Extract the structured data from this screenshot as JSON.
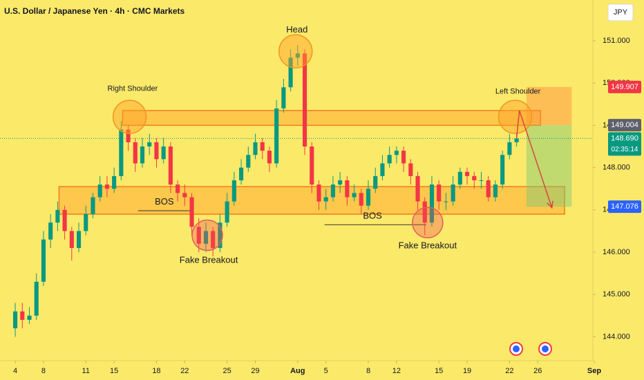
{
  "chart_data": {
    "type": "candlestick",
    "title": "U.S. Dollar / Japanese Yen · 4h · CMC Markets",
    "currency": "JPY",
    "up_color": "#089981",
    "down_color": "#f23645",
    "x": [
      0,
      0.5,
      1,
      1.5,
      2,
      2.5,
      3,
      3.5,
      4,
      4.5,
      5,
      5.5,
      6,
      6.5,
      7,
      7.5,
      8,
      8.5,
      9,
      9.5,
      10,
      10.5,
      11,
      11.5,
      12,
      12.5,
      13,
      13.5,
      14,
      14.5,
      15,
      15.5,
      16,
      16.5,
      17,
      17.5,
      18,
      18.5,
      19,
      19.5,
      20,
      20.5,
      21,
      21.5,
      22,
      22.5,
      23,
      23.5,
      24,
      24.5,
      25,
      25.5,
      26,
      26.5,
      27,
      27.5,
      28,
      28.5,
      29,
      29.5,
      30,
      30.5,
      31,
      31.5,
      32,
      32.5,
      33,
      33.5,
      34,
      34.5,
      35,
      35.5
    ],
    "open": [
      144.2,
      144.6,
      144.4,
      144.5,
      145.3,
      146.3,
      146.7,
      147.0,
      146.5,
      146.1,
      146.5,
      146.9,
      147.3,
      147.6,
      147.5,
      147.8,
      148.9,
      148.6,
      148.1,
      148.5,
      148.6,
      148.2,
      148.5,
      147.6,
      147.4,
      147.3,
      146.6,
      146.2,
      146.5,
      146.1,
      146.7,
      147.2,
      147.7,
      148.0,
      148.3,
      148.6,
      148.4,
      148.1,
      149.4,
      149.9,
      150.6,
      150.7,
      148.5,
      147.6,
      147.2,
      147.3,
      147.6,
      147.7,
      147.3,
      147.4,
      147.1,
      147.5,
      147.8,
      148.1,
      148.3,
      148.4,
      148.1,
      147.8,
      147.2,
      146.7,
      147.6,
      147.2,
      147.2,
      147.6,
      147.9,
      147.8,
      147.7,
      147.7,
      147.3,
      147.6,
      148.3,
      148.6
    ],
    "high": [
      144.8,
      144.8,
      144.7,
      145.5,
      146.5,
      146.9,
      147.2,
      147.1,
      146.6,
      146.7,
      147.1,
      147.4,
      147.8,
      147.8,
      148.0,
      149.1,
      149.0,
      148.7,
      148.7,
      148.8,
      148.7,
      148.7,
      148.6,
      147.7,
      147.6,
      147.4,
      146.8,
      146.7,
      146.6,
      146.9,
      147.4,
      147.9,
      148.2,
      148.5,
      148.8,
      148.7,
      148.5,
      149.6,
      150.1,
      150.8,
      150.9,
      150.8,
      148.6,
      147.7,
      147.5,
      147.8,
      147.9,
      147.8,
      147.6,
      147.5,
      147.7,
      148.0,
      148.3,
      148.5,
      148.5,
      148.5,
      148.2,
      147.9,
      147.3,
      147.8,
      147.7,
      147.4,
      147.8,
      148.0,
      148.0,
      147.9,
      147.9,
      147.8,
      147.7,
      148.4,
      148.8,
      148.8
    ],
    "low": [
      144.0,
      144.2,
      144.3,
      144.4,
      145.2,
      146.1,
      146.5,
      146.3,
      145.8,
      146.0,
      146.4,
      146.8,
      147.2,
      147.3,
      147.4,
      147.7,
      148.4,
      147.9,
      148.0,
      148.3,
      148.0,
      148.1,
      147.4,
      147.2,
      147.1,
      146.4,
      146.0,
      146.0,
      145.9,
      146.0,
      146.6,
      147.1,
      147.6,
      147.9,
      148.2,
      148.2,
      147.9,
      148.0,
      149.3,
      149.8,
      150.4,
      148.3,
      147.4,
      147.0,
      147.0,
      147.2,
      147.4,
      147.1,
      147.2,
      146.9,
      147.0,
      147.4,
      147.7,
      148.0,
      148.1,
      147.9,
      147.6,
      147.0,
      146.4,
      146.6,
      147.0,
      147.0,
      147.1,
      147.5,
      147.6,
      147.5,
      147.5,
      147.2,
      147.2,
      147.5,
      148.2,
      148.5
    ],
    "close": [
      144.6,
      144.4,
      144.5,
      145.3,
      146.3,
      146.7,
      147.0,
      146.5,
      146.1,
      146.5,
      146.9,
      147.3,
      147.6,
      147.5,
      147.8,
      148.9,
      148.6,
      148.1,
      148.5,
      148.6,
      148.2,
      148.5,
      147.6,
      147.4,
      147.3,
      146.6,
      146.2,
      146.5,
      146.1,
      146.7,
      147.2,
      147.7,
      148.0,
      148.3,
      148.6,
      148.4,
      148.1,
      149.4,
      149.9,
      150.6,
      150.7,
      148.5,
      147.6,
      147.2,
      147.3,
      147.6,
      147.7,
      147.3,
      147.4,
      147.1,
      147.5,
      147.8,
      148.1,
      148.3,
      148.4,
      148.1,
      147.8,
      147.2,
      146.7,
      147.6,
      147.2,
      147.2,
      147.6,
      147.9,
      147.8,
      147.7,
      147.7,
      147.3,
      147.6,
      148.3,
      148.6,
      148.69
    ],
    "xlim": [
      -1.08,
      41
    ],
    "ylim": [
      143.435,
      151.964
    ],
    "xticks": [
      {
        "value": 0,
        "label": "4"
      },
      {
        "value": 2,
        "label": "8"
      },
      {
        "value": 5,
        "label": "11"
      },
      {
        "value": 7,
        "label": "15"
      },
      {
        "value": 10,
        "label": "18"
      },
      {
        "value": 12,
        "label": "22"
      },
      {
        "value": 15,
        "label": "25"
      },
      {
        "value": 17,
        "label": "29"
      },
      {
        "value": 20,
        "label": "Aug"
      },
      {
        "value": 22,
        "label": "5"
      },
      {
        "value": 25,
        "label": "8"
      },
      {
        "value": 27,
        "label": "12"
      },
      {
        "value": 30,
        "label": "15"
      },
      {
        "value": 32,
        "label": "19"
      },
      {
        "value": 35,
        "label": "22"
      },
      {
        "value": 37,
        "label": "26"
      },
      {
        "value": 41,
        "label": "Sep"
      }
    ],
    "yticks": [
      {
        "value": 144,
        "label": "144.000"
      },
      {
        "value": 145,
        "label": "145.000"
      },
      {
        "value": 146,
        "label": "146.000"
      },
      {
        "value": 147,
        "label": "147.000"
      },
      {
        "value": 148,
        "label": "148.000"
      },
      {
        "value": 149,
        "label": "149.000"
      },
      {
        "value": 150,
        "label": "150.000"
      },
      {
        "value": 151,
        "label": "151.000"
      }
    ],
    "price_labels": [
      {
        "value": 149.907,
        "label": "149.907",
        "color": "#f23645"
      },
      {
        "value": 149.004,
        "label": "149.004",
        "color": "#5d606b"
      },
      {
        "value": 148.69,
        "label": "148.690",
        "color": "#089981"
      },
      {
        "value": 147.076,
        "label": "147.076",
        "color": "#2962ff"
      }
    ],
    "countdown": "02:35:14",
    "zones": [
      {
        "x": [
          7.6,
          37.2
        ],
        "y": [
          149.0,
          149.35
        ]
      },
      {
        "x": [
          3.1,
          38.9
        ],
        "y": [
          146.9,
          147.55
        ]
      }
    ],
    "target_box": {
      "x": [
        36.2,
        39.4
      ],
      "stop": 149.907,
      "entry": 149.004,
      "target": 147.076
    },
    "circles": [
      {
        "x": 8.1,
        "y": 149.2
      },
      {
        "x": 19.85,
        "y": 150.75
      },
      {
        "x": 35.4,
        "y": 149.2
      },
      {
        "x": 13.6,
        "y": 146.4
      },
      {
        "x": 29.2,
        "y": 146.7
      }
    ],
    "bos_lines": [
      {
        "x": [
          8.7,
          12.6
        ],
        "y": 146.98
      },
      {
        "x": [
          21.9,
          29.1
        ],
        "y": 146.65
      }
    ],
    "arrow": {
      "x": [
        35.5,
        35.7,
        38.0
      ],
      "y": [
        148.69,
        149.35,
        147.05
      ]
    },
    "annotations": [
      {
        "text": "Right Shoulder",
        "x": 8.31,
        "y": 149.86
      },
      {
        "text": "Head",
        "x": 19.95,
        "y": 151.25
      },
      {
        "text": "Left Shoulder",
        "x": 35.6,
        "y": 149.8
      },
      {
        "text": "BOS",
        "x": 10.56,
        "y": 147.18
      },
      {
        "text": "BOS",
        "x": 25.3,
        "y": 146.85
      },
      {
        "text": "Fake Breakout",
        "x": 13.7,
        "y": 145.8
      },
      {
        "text": "Fake Breakout",
        "x": 29.2,
        "y": 146.15
      }
    ]
  }
}
